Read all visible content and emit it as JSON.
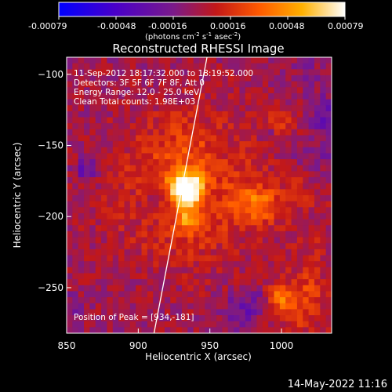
{
  "colorbar": {
    "ticks": [
      "-0.00079",
      "-0.00048",
      "-0.00016",
      "0.00016",
      "0.00048",
      "0.00079"
    ],
    "unit_prefix": "(photons cm",
    "unit_exp1": "-2",
    "unit_mid": " s",
    "unit_exp2": "-1",
    "unit_mid2": " asec",
    "unit_exp3": "-2",
    "unit_suffix": ")"
  },
  "chart_data": {
    "type": "heatmap",
    "title": "Reconstructed RHESSI Image",
    "xlabel": "Heliocentric X (arcsec)",
    "ylabel": "Heliocentric Y (arcsec)",
    "xlim": [
      850,
      1035
    ],
    "ylim": [
      -282,
      -88
    ],
    "x_ticks": [
      850,
      900,
      950,
      1000
    ],
    "y_ticks": [
      -100,
      -150,
      -200,
      -250
    ],
    "colormap": [
      "#0000ff",
      "#4a00c8",
      "#7a1a8a",
      "#c31818",
      "#ff5a00",
      "#ffb000",
      "#ffffff"
    ],
    "colorbar_range": [
      -0.00079,
      0.00079
    ],
    "peak": [
      934,
      -181
    ],
    "limb_line": [
      [
        911,
        -282
      ],
      [
        948,
        -88
      ]
    ],
    "annotations": [
      "11-Sep-2012 18:17:32.000 to 18:19:52.000",
      "Detectors: 3F 5F 6F 7F 8F, Att 0",
      "Energy Range: 12.0 - 25.0 keV",
      "Clean     Total counts: 1.98E+03",
      "Position of Peak = [934,-181]"
    ]
  },
  "footer": {
    "timestamp": "14-May-2022 11:16"
  }
}
